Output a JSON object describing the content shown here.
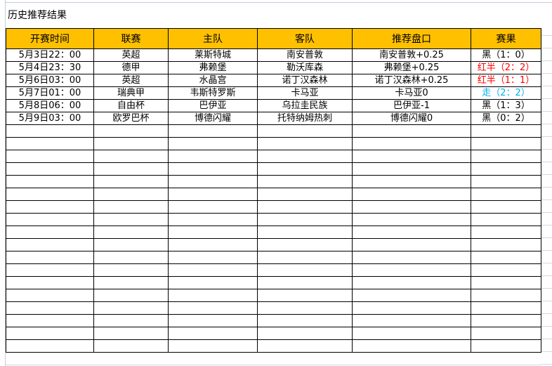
{
  "title": "历史推荐结果",
  "headers": [
    "开赛时间",
    "联赛",
    "主队",
    "客队",
    "推荐盘口",
    "赛果"
  ],
  "colors": {
    "header_bg": "#ffc000",
    "red": "#ff0000",
    "blue": "#00b0f0"
  },
  "rows": [
    {
      "time": "5月3日22：00",
      "league": "英超",
      "home": "莱斯特城",
      "away": "南安普敦",
      "pick": "南安普敦+0.25",
      "result": "黑（1：0）",
      "result_color": "black"
    },
    {
      "time": "5月4日23：30",
      "league": "德甲",
      "home": "弗赖堡",
      "away": "勒沃库森",
      "pick": "弗赖堡+0.25",
      "result": "红半（2：2）",
      "result_color": "red"
    },
    {
      "time": "5月6日03：00",
      "league": "英超",
      "home": "水晶宫",
      "away": "诺丁汉森林",
      "pick": "诺丁汉森林+0.25",
      "result": "红半（1：1）",
      "result_color": "red"
    },
    {
      "time": "5月7日01：00",
      "league": "瑞典甲",
      "home": "韦斯特罗斯",
      "away": "卡马亚",
      "pick": "卡马亚0",
      "result": "走（2：2）",
      "result_color": "blue"
    },
    {
      "time": "5月8日06：00",
      "league": "自由杯",
      "home": "巴伊亚",
      "away": "乌拉圭民族",
      "pick": "巴伊亚-1",
      "result": "黑（1：3）",
      "result_color": "black"
    },
    {
      "time": "5月9日03：00",
      "league": "欧罗巴杯",
      "home": "博德闪耀",
      "away": "托特纳姆热刺",
      "pick": "博德闪耀0",
      "result": "黑（0：2）",
      "result_color": "black"
    }
  ]
}
